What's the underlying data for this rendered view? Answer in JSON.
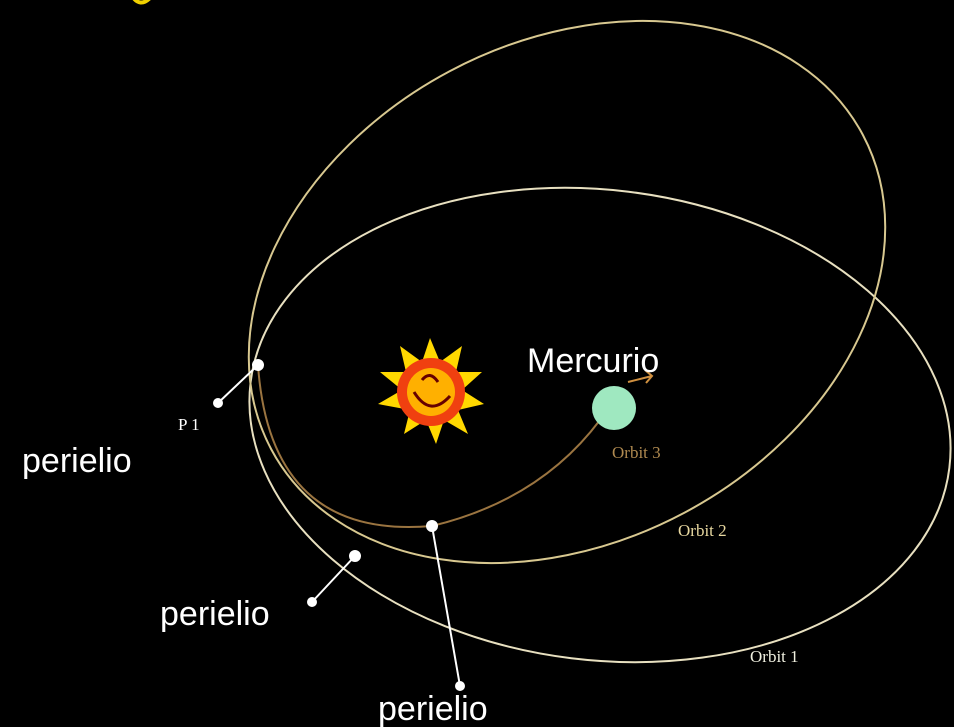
{
  "labels": {
    "planet": "Mercurio",
    "perihelion_1": "perielio",
    "perihelion_2": "perielio",
    "perihelion_3": "perielio",
    "point_1": "P 1"
  },
  "orbits": {
    "orbit_3": "Orbit 3",
    "orbit_2": "Orbit 2",
    "orbit_1": "Orbit 1"
  }
}
